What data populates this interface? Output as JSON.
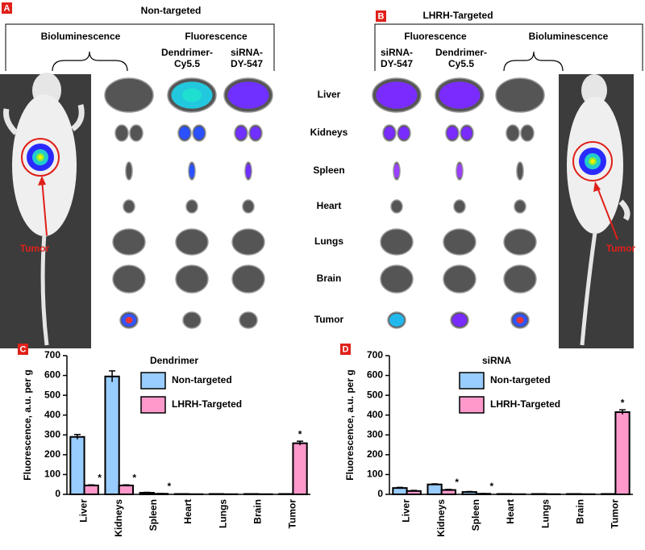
{
  "panels": [
    {
      "letter": "A",
      "title": "Non-targeted",
      "groups": [
        "Bioluminescence",
        "Fluorescence"
      ],
      "columns": [
        [
          "Dendrimer-",
          "Cy5.5"
        ],
        [
          "siRNA-",
          "DY-547"
        ]
      ],
      "tumor_label": "Tumor"
    },
    {
      "letter": "B",
      "title": "LHRH-Targeted",
      "groups": [
        "Fluorescence",
        "Bioluminescence"
      ],
      "columns": [
        [
          "siRNA-",
          "DY-547"
        ],
        [
          "Dendrimer-",
          "Cy5.5"
        ]
      ],
      "tumor_label": "Tumor"
    }
  ],
  "organs": [
    "Liver",
    "Kidneys",
    "Spleen",
    "Heart",
    "Lungs",
    "Brain",
    "Tumor"
  ],
  "chart_data": [
    {
      "type": "bar",
      "label": "C",
      "title": "Dendrimer",
      "y_label": "Fluorescence, a.u. per g",
      "categories": [
        "Liver",
        "Kidneys",
        "Spleen",
        "Heart",
        "Lungs",
        "Brain",
        "Tumor"
      ],
      "series": [
        {
          "name": "Non-targeted",
          "color": "#99ccff",
          "values": [
            290,
            595,
            8,
            2,
            2,
            2,
            2
          ],
          "errors": [
            12,
            28,
            2,
            0,
            0,
            0,
            0
          ]
        },
        {
          "name": "LHRH-Targeted",
          "color": "#ff99cc",
          "values": [
            45,
            45,
            3,
            1,
            1,
            1,
            258
          ],
          "errors": [
            3,
            3,
            1,
            0,
            0,
            0,
            10
          ],
          "significance": [
            "*",
            "*",
            "*",
            null,
            null,
            null,
            "*"
          ]
        }
      ],
      "ylim": [
        0,
        700
      ],
      "yticks": [
        0,
        100,
        200,
        300,
        400,
        500,
        600,
        700
      ],
      "grid": false
    },
    {
      "type": "bar",
      "label": "D",
      "title": "siRNA",
      "y_label": "Fluorescence, a.u. per g",
      "categories": [
        "Liver",
        "Kidneys",
        "Spleen",
        "Heart",
        "Lungs",
        "Brain",
        "Tumor"
      ],
      "series": [
        {
          "name": "Non-targeted",
          "color": "#99ccff",
          "values": [
            32,
            50,
            12,
            2,
            2,
            2,
            2
          ],
          "errors": [
            3,
            3,
            2,
            0,
            0,
            0,
            0
          ]
        },
        {
          "name": "LHRH-Targeted",
          "color": "#ff99cc",
          "values": [
            17,
            22,
            3,
            1,
            1,
            1,
            415
          ],
          "errors": [
            3,
            3,
            1,
            0,
            0,
            0,
            12
          ],
          "significance": [
            null,
            "*",
            "*",
            null,
            null,
            null,
            "*"
          ]
        }
      ],
      "ylim": [
        0,
        700
      ],
      "yticks": [
        0,
        100,
        200,
        300,
        400,
        500,
        600,
        700
      ],
      "grid": false
    }
  ]
}
